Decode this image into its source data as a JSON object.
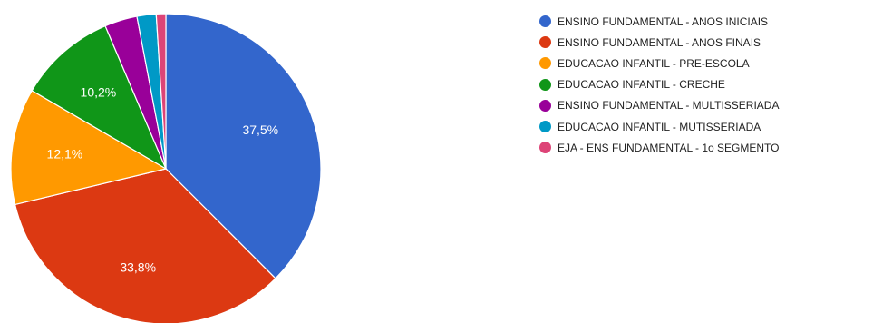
{
  "chart_data": {
    "type": "pie",
    "title": "",
    "legend_position": "right",
    "start_angle_deg": 0,
    "direction": "clockwise",
    "slices": [
      {
        "label": "ENSINO FUNDAMENTAL - ANOS INICIAIS",
        "value": 37.5,
        "display": "37,5%",
        "color": "#3366cc"
      },
      {
        "label": "ENSINO FUNDAMENTAL - ANOS FINAIS",
        "value": 33.8,
        "display": "33,8%",
        "color": "#dc3912"
      },
      {
        "label": "EDUCACAO INFANTIL - PRE-ESCOLA",
        "value": 12.1,
        "display": "12,1%",
        "color": "#ff9900"
      },
      {
        "label": "EDUCACAO INFANTIL - CRECHE",
        "value": 10.2,
        "display": "10,2%",
        "color": "#109618"
      },
      {
        "label": "ENSINO FUNDAMENTAL - MULTISSERIADA",
        "value": 3.4,
        "display": "",
        "color": "#990099"
      },
      {
        "label": "EDUCACAO INFANTIL - MUTISSERIADA",
        "value": 2.0,
        "display": "",
        "color": "#0099c6"
      },
      {
        "label": "EJA - ENS FUNDAMENTAL - 1o SEGMENTO",
        "value": 1.0,
        "display": "",
        "color": "#dd4477"
      }
    ]
  }
}
